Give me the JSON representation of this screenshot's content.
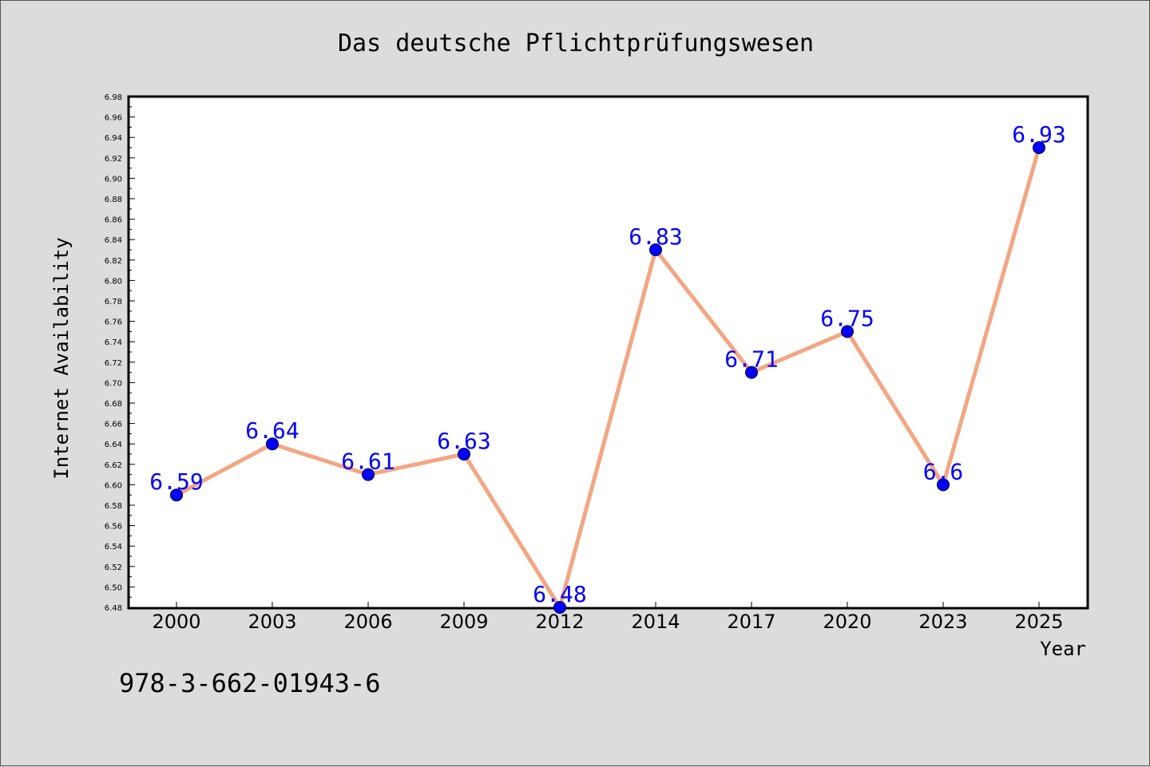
{
  "chart_data": {
    "type": "line",
    "title": "Das deutsche Pflichtprüfungswesen",
    "xlabel": "Year",
    "ylabel": "Internet Availability",
    "categories": [
      "2000",
      "2003",
      "2006",
      "2009",
      "2012",
      "2014",
      "2017",
      "2020",
      "2023",
      "2025"
    ],
    "series": [
      {
        "values": [
          6.59,
          6.64,
          6.61,
          6.63,
          6.48,
          6.83,
          6.71,
          6.75,
          6.6,
          6.93
        ],
        "labels": [
          "6.59",
          "6.64",
          "6.61",
          "6.63",
          "6.48",
          "6.83",
          "6.71",
          "6.75",
          "6.6",
          "6.93"
        ],
        "line_color": "#f4a582",
        "marker_color": "#0000ff"
      }
    ],
    "ylim": [
      6.48,
      6.98
    ],
    "yticks": [
      "6.48",
      "6.50",
      "6.52",
      "6.54",
      "6.56",
      "6.58",
      "6.60",
      "6.62",
      "6.64",
      "6.66",
      "6.68",
      "6.70",
      "6.72",
      "6.74",
      "6.76",
      "6.78",
      "6.80",
      "6.82",
      "6.84",
      "6.86",
      "6.88",
      "6.90",
      "6.92",
      "6.94",
      "6.96",
      "6.98"
    ],
    "grid": false,
    "legend": "none",
    "data_label_color": "#0000ff"
  },
  "footer_text": "978-3-662-01943-6"
}
